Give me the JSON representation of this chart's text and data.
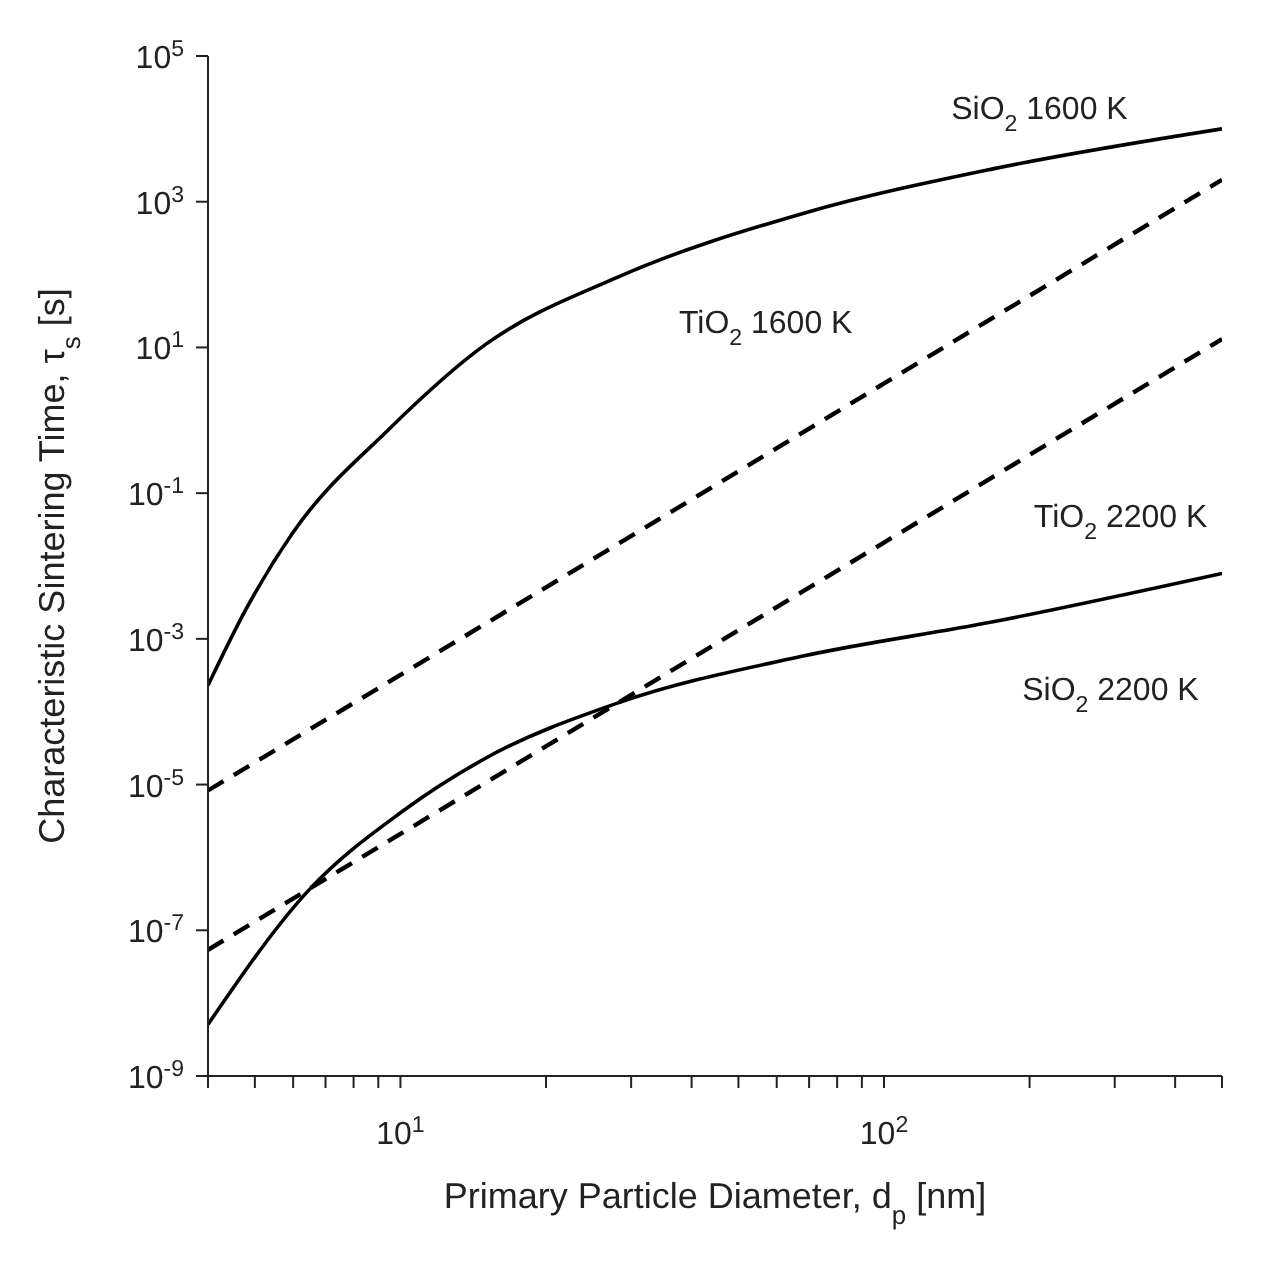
{
  "chart_data": {
    "type": "line",
    "xlabel": "Primary Particle Diameter, d$_{p}$ [nm]",
    "ylabel": "Characteristic Sintering Time, τ$_{s}$ [s]",
    "log": "xy",
    "marker": "none",
    "xlim": [
      4,
      500
    ],
    "xticks": [
      {
        "value": 4,
        "label": null
      },
      {
        "value": 5,
        "label": null
      },
      {
        "value": 6,
        "label": null
      },
      {
        "value": 7,
        "label": null
      },
      {
        "value": 8,
        "label": null
      },
      {
        "value": 9,
        "label": null
      },
      {
        "value": 10,
        "label": "10$^{1}$"
      },
      {
        "value": 20,
        "label": null
      },
      {
        "value": 30,
        "label": null
      },
      {
        "value": 40,
        "label": null
      },
      {
        "value": 50,
        "label": null
      },
      {
        "value": 60,
        "label": null
      },
      {
        "value": 70,
        "label": null
      },
      {
        "value": 80,
        "label": null
      },
      {
        "value": 90,
        "label": null
      },
      {
        "value": 100,
        "label": "10$^{2}$"
      },
      {
        "value": 200,
        "label": null
      },
      {
        "value": 300,
        "label": null
      },
      {
        "value": 400,
        "label": null
      },
      {
        "value": 500,
        "label": null
      }
    ],
    "ylim": [
      1e-09,
      100000
    ],
    "yticks": [
      {
        "value": 1e-09,
        "label": "10$^{-9}$"
      },
      {
        "value": 1e-07,
        "label": "10$^{-7}$"
      },
      {
        "value": 1e-05,
        "label": "10$^{-5}$"
      },
      {
        "value": 0.001,
        "label": "10$^{-3}$"
      },
      {
        "value": 0.1,
        "label": "10$^{-1}$"
      },
      {
        "value": 10,
        "label": "10$^{1}$"
      },
      {
        "value": 1000,
        "label": "10$^{3}$"
      },
      {
        "value": 100000,
        "label": "10$^{5}$"
      }
    ],
    "series": [
      {
        "color": "#000000",
        "line_style": "solid",
        "x": [
          4,
          4.8,
          6,
          9.4,
          15,
          28,
          68,
          167,
          500
        ],
        "values": [
          0.00023,
          0.0026,
          0.029,
          0.72,
          11,
          91,
          690,
          2800,
          10000
        ]
      },
      {
        "color": "#000000",
        "line_style": "dashed",
        "x": [
          4,
          10,
          100,
          500
        ],
        "values": [
          8.3e-06,
          0.00032,
          3.2,
          2000
        ]
      },
      {
        "color": "#000000",
        "line_style": "dashed",
        "x": [
          4,
          10,
          100,
          500
        ],
        "values": [
          5.4e-08,
          2.1e-06,
          0.021,
          13
        ]
      },
      {
        "color": "#000000",
        "line_style": "solid",
        "x": [
          4,
          6.5,
          10,
          15,
          28,
          68,
          167,
          500
        ],
        "values": [
          5.1e-09,
          3.7e-07,
          4.1e-06,
          2.3e-05,
          0.00013,
          0.00058,
          0.0017,
          0.0079
        ]
      }
    ],
    "annotations": [
      "SiO$_{2}$ 1600 K",
      "TiO$_{2}$ 1600 K",
      "TiO$_{2}$ 2200 K",
      "SiO$_{2}$ 2200 K"
    ]
  }
}
